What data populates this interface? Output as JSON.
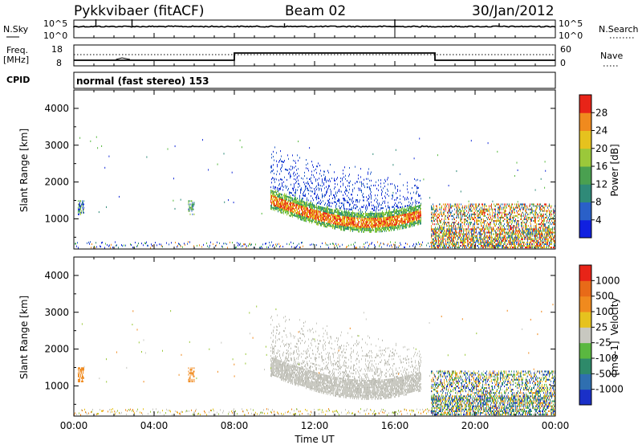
{
  "header": {
    "station": "Pykkvibaer (fitACF)",
    "beam": "Beam 02",
    "date": "30/Jan/2012"
  },
  "nsky_panel": {
    "label": "N.Sky",
    "left_ticks": [
      "10^5",
      "10^0"
    ],
    "right_label": "N.Search",
    "right_ticks": [
      "10^5",
      "10^0"
    ]
  },
  "freq_panel": {
    "label_line1": "Freq.",
    "label_line2": "[MHz]",
    "left_ticks": [
      "18",
      "8"
    ],
    "right_label": "Nave",
    "right_ticks": [
      "60",
      "0"
    ]
  },
  "cpid_panel": {
    "label": "CPID",
    "text": "normal (fast stereo) 153"
  },
  "colors": {
    "blue": "#2a3fd6",
    "teal": "#3a8a66",
    "green": "#55b83c",
    "yellow": "#e6c21e",
    "orange": "#f08a1e",
    "red": "#e82418",
    "gray": "#c8c8c0"
  },
  "chart_data": [
    {
      "type": "heatmap",
      "title": "",
      "ylabel": "Slant Range [km]",
      "xlabel": "",
      "xlim": [
        "00:00",
        "24:00"
      ],
      "ylim": [
        180,
        4500
      ],
      "y_ticks": [
        1000,
        2000,
        3000,
        4000
      ],
      "colorbar": {
        "label": "Power [dB]",
        "ticks": [
          "4",
          "8",
          "12",
          "16",
          "20",
          "24",
          "28"
        ],
        "colors": [
          "#1020e0",
          "#2a60c8",
          "#2f8a78",
          "#4aa050",
          "#9bc83a",
          "#e6c21e",
          "#f08a1e",
          "#e82418"
        ]
      }
    },
    {
      "type": "heatmap",
      "title": "",
      "ylabel": "Slant Range [km]",
      "xlabel": "Time UT",
      "x_ticks": [
        "00:00",
        "04:00",
        "08:00",
        "12:00",
        "16:00",
        "20:00",
        "00:00"
      ],
      "xlim": [
        "00:00",
        "24:00"
      ],
      "ylim": [
        180,
        4500
      ],
      "y_ticks": [
        1000,
        2000,
        3000,
        4000
      ],
      "colorbar": {
        "label": "Velocity",
        "unit": "[m s-1]",
        "ticks": [
          "1000",
          "500",
          "100",
          "25",
          "-25",
          "-100",
          "-500",
          "-1000"
        ],
        "colors": [
          "#1a30c8",
          "#2f6fb0",
          "#2e8a6a",
          "#5ab840",
          "#c8c8c0",
          "#e6c21e",
          "#f08a1e",
          "#e86a18",
          "#e82418"
        ]
      }
    }
  ]
}
